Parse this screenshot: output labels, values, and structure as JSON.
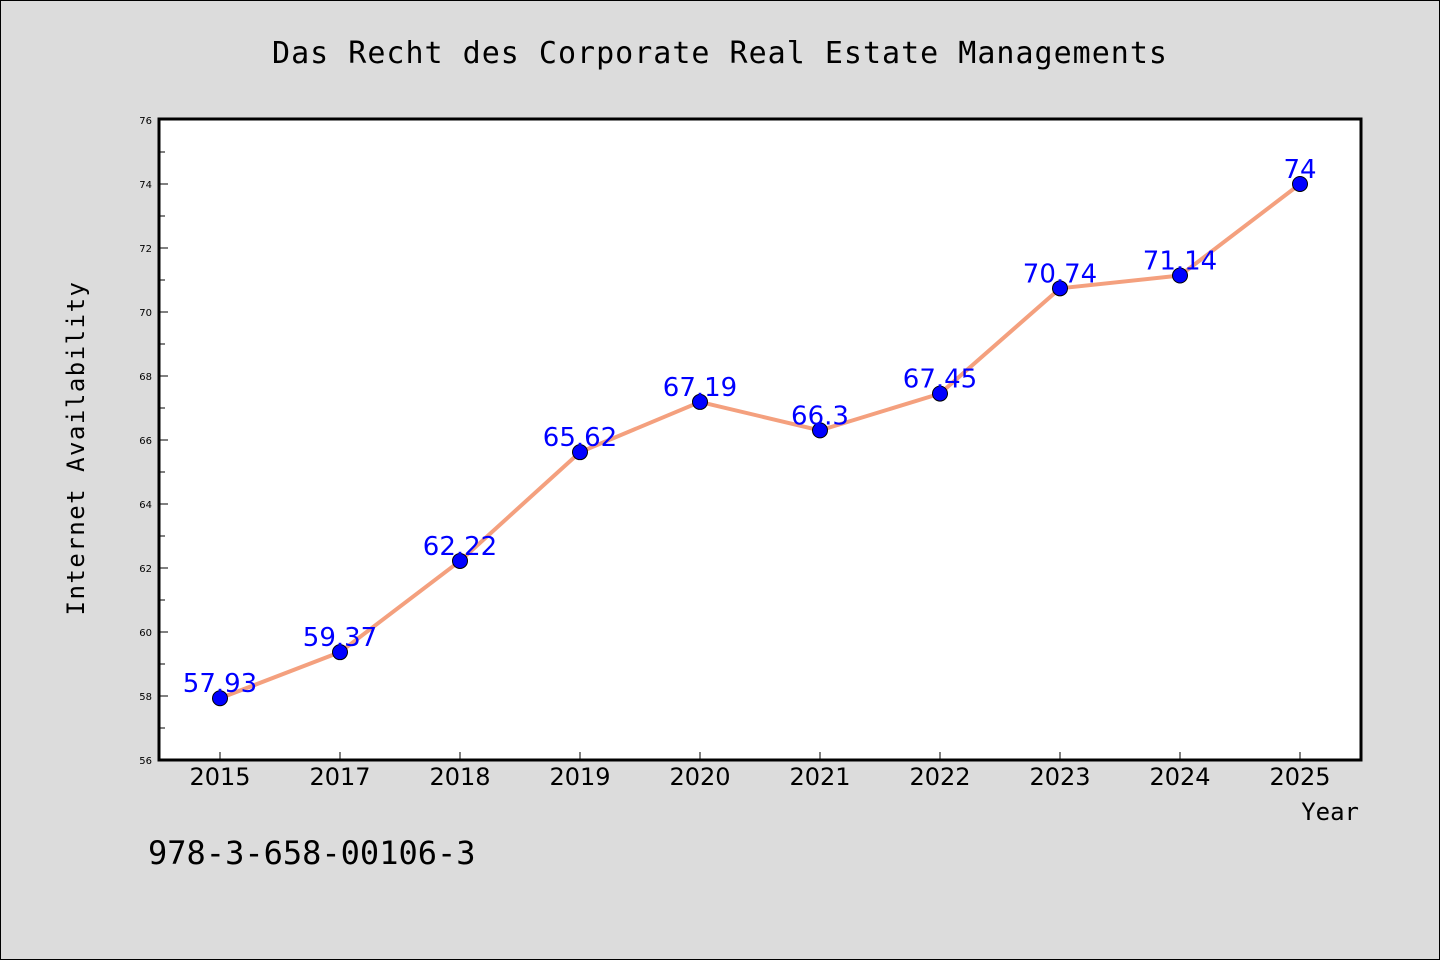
{
  "chart_data": {
    "type": "line",
    "title": "Das Recht des Corporate Real Estate Managements",
    "xlabel": "Year",
    "ylabel": "Internet Availability",
    "categories": [
      "2015",
      "2017",
      "2018",
      "2019",
      "2020",
      "2021",
      "2022",
      "2023",
      "2024",
      "2025"
    ],
    "values": [
      57.93,
      59.37,
      62.22,
      65.62,
      67.19,
      66.3,
      67.45,
      70.74,
      71.14,
      74
    ],
    "data_labels": [
      "57.93",
      "59.37",
      "62.22",
      "65.62",
      "67.19",
      "66.3",
      "67.45",
      "70.74",
      "71.14",
      "74"
    ],
    "ylim": [
      56,
      76
    ],
    "yticks": [
      "56",
      "58",
      "60",
      "62",
      "64",
      "66",
      "68",
      "70",
      "72",
      "74",
      "76"
    ],
    "grid": false,
    "legend": "none",
    "colors": {
      "line": "#f4a07e",
      "marker": "#0000ff",
      "label": "#0000ff",
      "background": "#dcdcdc",
      "plot_background": "#ffffff"
    }
  },
  "footer": {
    "isbn": "978-3-658-00106-3"
  }
}
